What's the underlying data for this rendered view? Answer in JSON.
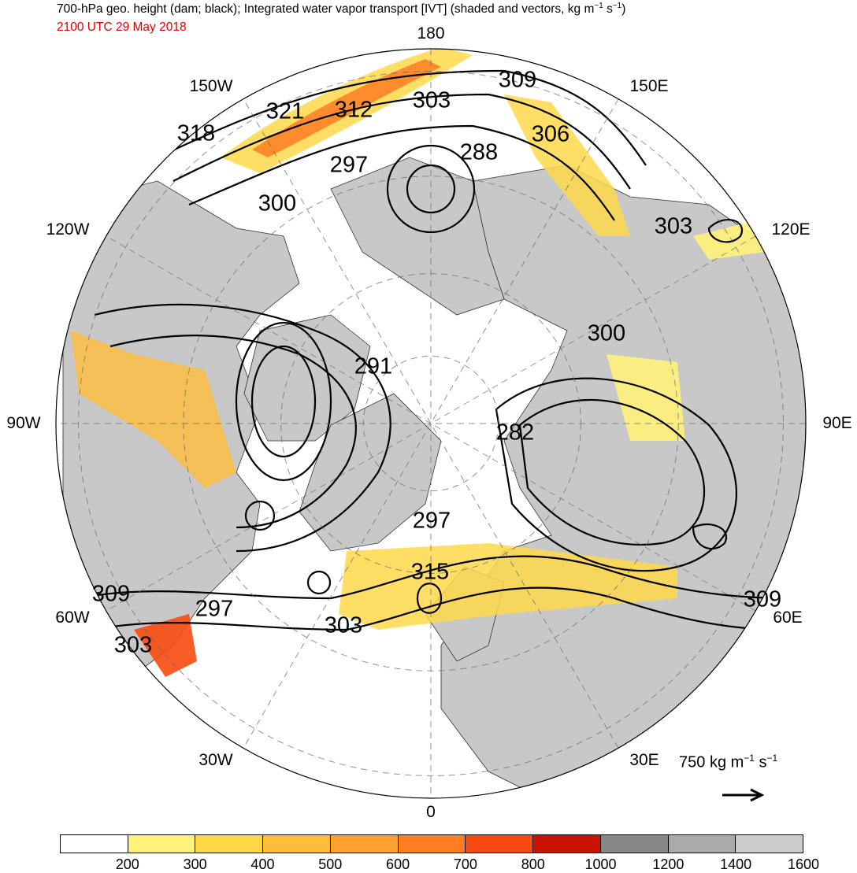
{
  "title_prefix": "700-hPa geo. height (dam; black); Integrated water vapor transport [IVT] (shaded and vectors, kg m",
  "title_sup1": "−1",
  "title_mid": " s",
  "title_sup2": "−1",
  "title_suffix": ")",
  "subtitle": "2100 UTC 29 May 2018",
  "longitude_labels": {
    "lon_180": "180",
    "lon_150W": "150W",
    "lon_150E": "150E",
    "lon_120W": "120W",
    "lon_120E": "120E",
    "lon_90W": "90W",
    "lon_90E": "90E",
    "lon_60W": "60W",
    "lon_60E": "60E",
    "lon_30W": "30W",
    "lon_30E": "30E",
    "lon_0": "0"
  },
  "contour_labels": [
    "309",
    "303",
    "321",
    "312",
    "318",
    "306",
    "297",
    "288",
    "300",
    "303",
    "300",
    "291",
    "282",
    "297",
    "315",
    "309",
    "303",
    "297",
    "309"
  ],
  "reference_vector": {
    "value": "750",
    "unit_prefix": "kg m",
    "sup1": "−1",
    "unit_mid": " s",
    "sup2": "−1"
  },
  "colorbar": {
    "colors": [
      "#ffffff",
      "#fff27a",
      "#ffd84a",
      "#ffbd3a",
      "#ffa030",
      "#ff7e22",
      "#f84a10",
      "#cc1200",
      "#888888",
      "#aaaaaa",
      "#cccccc"
    ],
    "labels": [
      "200",
      "300",
      "400",
      "500",
      "600",
      "700",
      "800",
      "1000",
      "1200",
      "1400",
      "1600"
    ]
  },
  "colors": {
    "land": "#c8c8c8",
    "contour": "#000000",
    "subtitle": "#e00000"
  }
}
